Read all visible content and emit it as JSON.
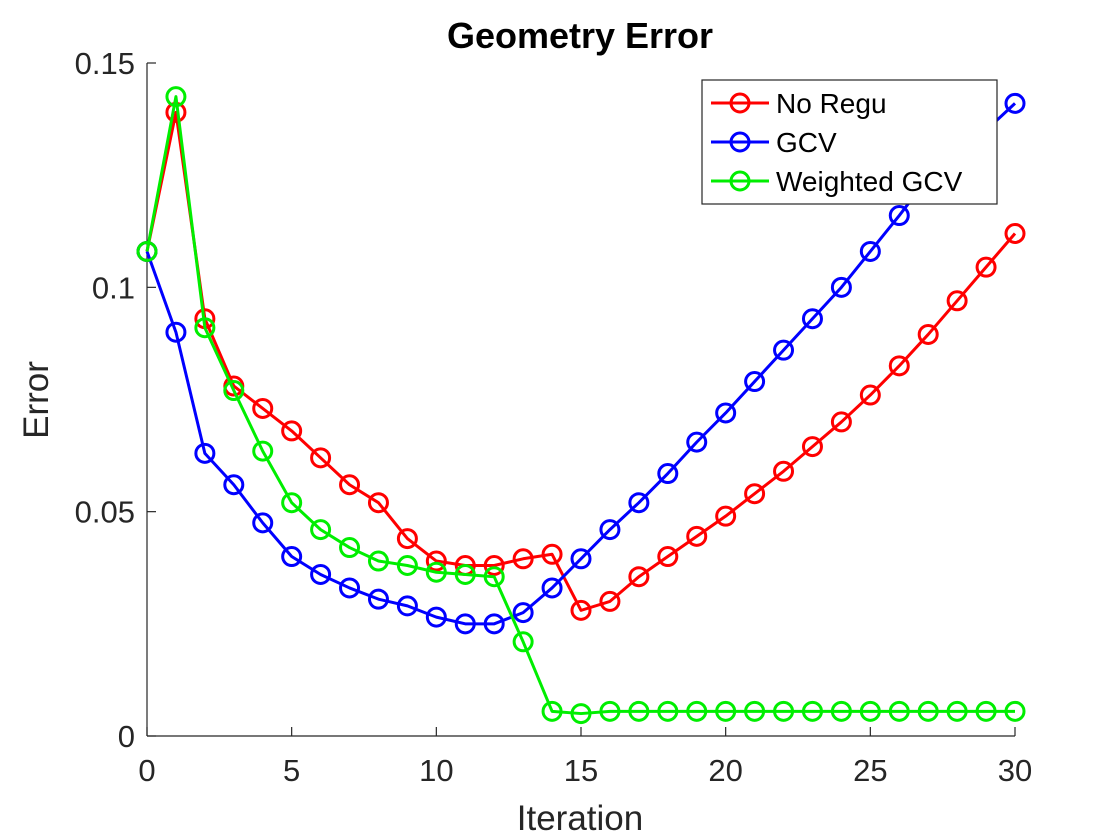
{
  "chart_data": {
    "type": "line",
    "title": "Geometry Error",
    "xlabel": "Iteration",
    "ylabel": "Error",
    "xlim": [
      0,
      30
    ],
    "ylim": [
      0,
      0.15
    ],
    "xticks": [
      0,
      5,
      10,
      15,
      20,
      25,
      30
    ],
    "xtick_labels": [
      "0",
      "5",
      "10",
      "15",
      "20",
      "25",
      "30"
    ],
    "yticks": [
      0,
      0.05,
      0.1,
      0.15
    ],
    "ytick_labels": [
      "0",
      "0.05",
      "0.1",
      "0.15"
    ],
    "grid": false,
    "legend_position": "top-right",
    "x": [
      0,
      1,
      2,
      3,
      4,
      5,
      6,
      7,
      8,
      9,
      10,
      11,
      12,
      13,
      14,
      15,
      16,
      17,
      18,
      19,
      20,
      21,
      22,
      23,
      24,
      25,
      26,
      27,
      28,
      29,
      30
    ],
    "series": [
      {
        "name": "No Regu",
        "color": "#ff0000",
        "values": [
          0.108,
          0.139,
          0.093,
          0.078,
          0.073,
          0.068,
          0.062,
          0.056,
          0.052,
          0.044,
          0.039,
          0.038,
          0.038,
          0.0395,
          0.0405,
          0.028,
          0.03,
          0.0355,
          0.04,
          0.0445,
          0.049,
          0.054,
          0.059,
          0.0645,
          0.07,
          0.076,
          0.0825,
          0.0895,
          0.097,
          0.1045,
          0.112
        ]
      },
      {
        "name": "GCV",
        "color": "#0000ff",
        "values": [
          0.108,
          0.09,
          0.063,
          0.056,
          0.0475,
          0.04,
          0.036,
          0.033,
          0.0305,
          0.029,
          0.0265,
          0.025,
          0.025,
          0.0275,
          0.033,
          0.0395,
          0.046,
          0.052,
          0.0585,
          0.0655,
          0.072,
          0.079,
          0.086,
          0.093,
          0.1,
          0.108,
          0.116,
          0.1245,
          0.1325,
          0.135,
          0.141
        ]
      },
      {
        "name": "Weighted GCV",
        "color": "#00ee00",
        "values": [
          0.108,
          0.1425,
          0.091,
          0.077,
          0.0635,
          0.052,
          0.046,
          0.042,
          0.039,
          0.038,
          0.0365,
          0.036,
          0.0355,
          0.021,
          0.0055,
          0.005,
          0.0055,
          0.0055,
          0.0055,
          0.0055,
          0.0055,
          0.0055,
          0.0055,
          0.0055,
          0.0055,
          0.0055,
          0.0055,
          0.0055,
          0.0055,
          0.0055,
          0.0055
        ]
      }
    ]
  }
}
